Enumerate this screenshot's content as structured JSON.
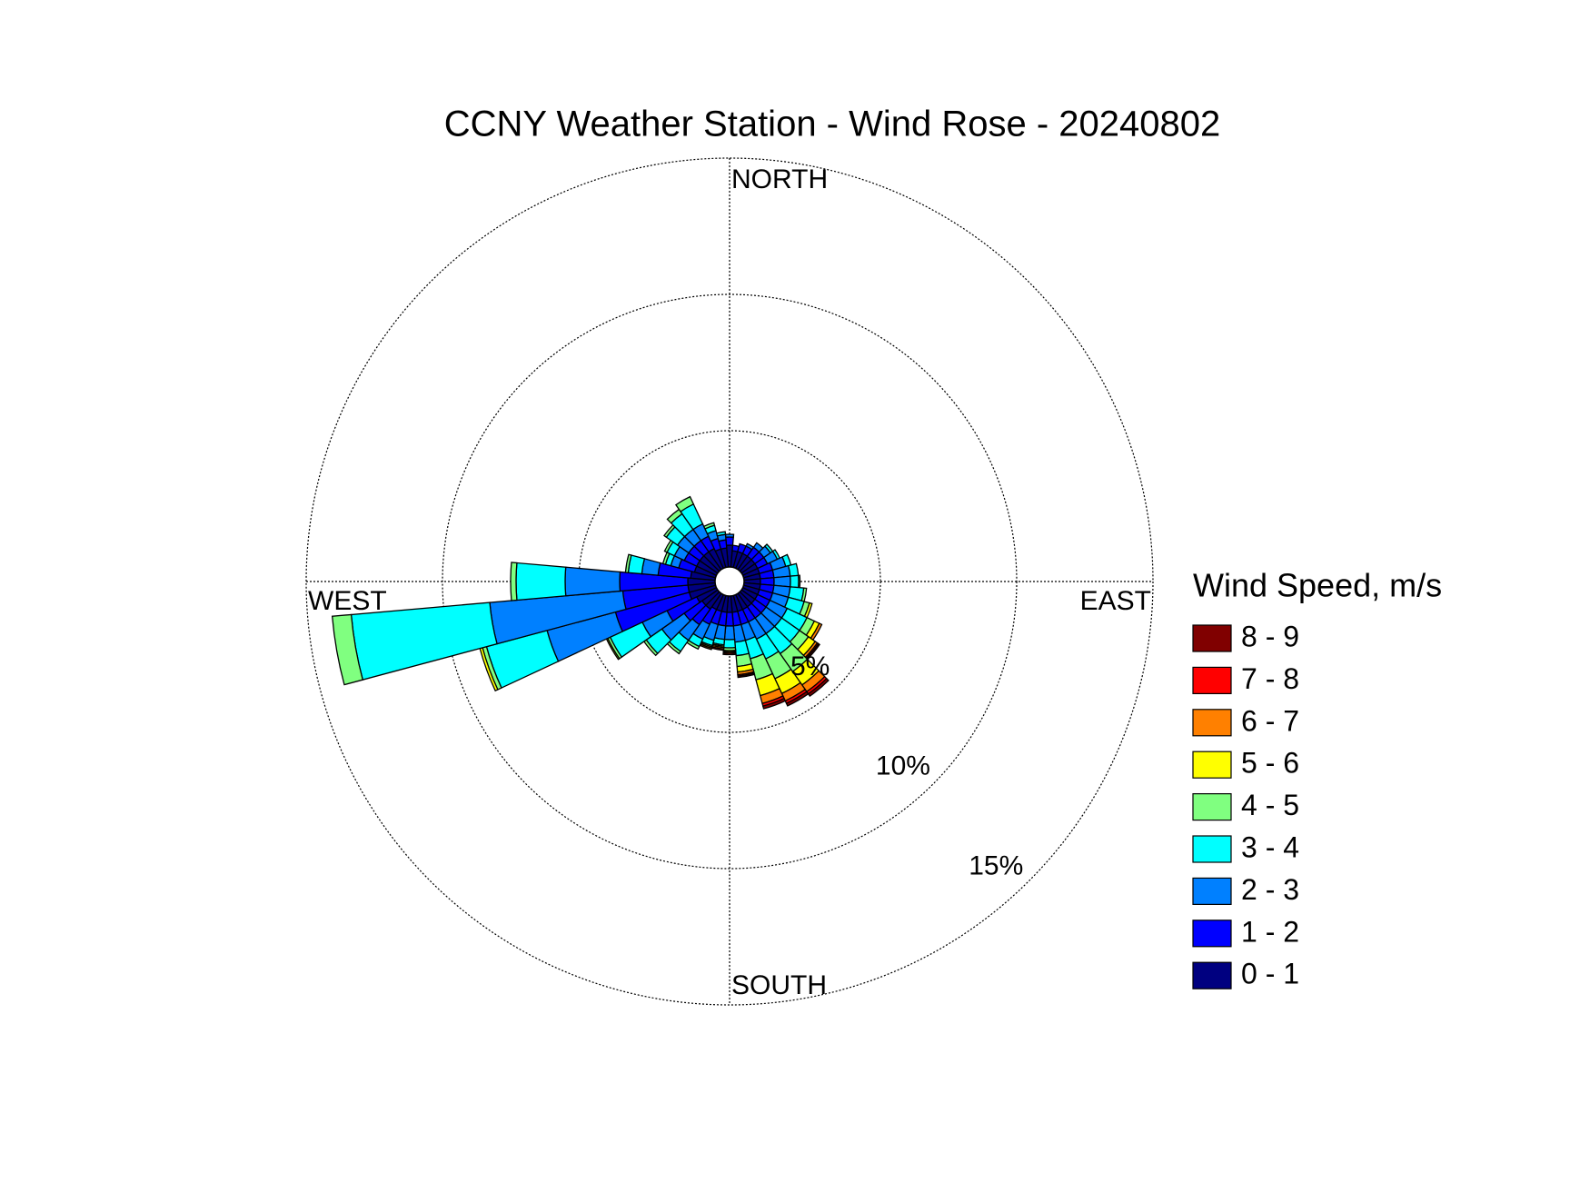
{
  "chart_data": {
    "type": "windrose",
    "title": "CCNY Weather Station - Wind Rose - 20240802",
    "direction_labels": [
      "NORTH",
      "EAST",
      "SOUTH",
      "WEST"
    ],
    "legend_title": "Wind Speed, m/s",
    "x": [
      0,
      10,
      20,
      30,
      40,
      50,
      60,
      70,
      80,
      90,
      100,
      110,
      120,
      130,
      140,
      150,
      160,
      170,
      180,
      190,
      200,
      210,
      220,
      230,
      240,
      250,
      260,
      270,
      280,
      290,
      300,
      310,
      320,
      330,
      340,
      350
    ],
    "rlim": [
      0,
      15
    ],
    "rticks": [
      {
        "value": 5,
        "label": "5%"
      },
      {
        "value": 10,
        "label": "10%"
      },
      {
        "value": 15,
        "label": "15%"
      }
    ],
    "grid": true,
    "series": [
      {
        "name": "0 - 1",
        "color": "#000080",
        "values": [
          0.8,
          0.6,
          0.6,
          0.6,
          0.6,
          0.6,
          0.6,
          0.6,
          0.6,
          0.6,
          0.6,
          0.6,
          0.6,
          0.6,
          0.6,
          0.6,
          0.6,
          0.6,
          0.6,
          0.6,
          0.6,
          0.6,
          0.7,
          0.7,
          0.8,
          1.0,
          1.0,
          1.0,
          0.9,
          0.8,
          0.8,
          0.8,
          0.8,
          0.8,
          0.7,
          0.7
        ]
      },
      {
        "name": "1 - 2",
        "color": "#0000ff",
        "values": [
          0.3,
          0.2,
          0.3,
          0.3,
          0.4,
          0.4,
          0.4,
          0.5,
          0.5,
          0.5,
          0.5,
          0.5,
          0.5,
          0.5,
          0.5,
          0.5,
          0.5,
          0.5,
          0.5,
          0.5,
          0.5,
          0.6,
          0.7,
          0.8,
          1.2,
          2.8,
          2.4,
          2.5,
          1.2,
          0.6,
          0.5,
          0.5,
          0.5,
          0.5,
          0.4,
          0.3
        ]
      },
      {
        "name": "2 - 3",
        "color": "#0080ff",
        "values": [
          0.1,
          0,
          0,
          0.1,
          0.2,
          0.3,
          0.4,
          0.5,
          0.6,
          0.6,
          0.6,
          0.6,
          0.7,
          0.7,
          0.7,
          0.7,
          0.6,
          0.6,
          0.5,
          0.5,
          0.6,
          0.6,
          0.7,
          1.0,
          1.0,
          2.6,
          4.9,
          2.0,
          0.6,
          0.3,
          0.4,
          0.5,
          0.5,
          0.5,
          0.3,
          0.2
        ]
      },
      {
        "name": "3 - 4",
        "color": "#00ffff",
        "values": [
          0,
          0,
          0,
          0,
          0,
          0.1,
          0.1,
          0.2,
          0.3,
          0.3,
          0.5,
          0.6,
          0.8,
          0.8,
          0.9,
          0.8,
          0.7,
          0.5,
          0.3,
          0.2,
          0.2,
          0.3,
          0.5,
          0.7,
          1.3,
          2.3,
          5.1,
          1.8,
          0.5,
          0.2,
          0.3,
          0.5,
          0.7,
          0.8,
          0.2,
          0.1
        ]
      },
      {
        "name": "4 - 5",
        "color": "#80ff80",
        "values": [
          0,
          0,
          0,
          0,
          0,
          0,
          0,
          0,
          0,
          0.05,
          0.1,
          0.2,
          0.3,
          0.4,
          0.8,
          0.8,
          0.8,
          0.4,
          0.1,
          0.05,
          0.05,
          0.1,
          0.1,
          0.1,
          0.1,
          0.15,
          0.7,
          0.2,
          0.1,
          0.1,
          0.1,
          0.1,
          0.2,
          0.3,
          0.1,
          0
        ]
      },
      {
        "name": "5 - 6",
        "color": "#ffff00",
        "values": [
          0,
          0,
          0,
          0,
          0,
          0,
          0,
          0,
          0,
          0,
          0,
          0.1,
          0.2,
          0.3,
          0.6,
          0.6,
          0.6,
          0.2,
          0.05,
          0.05,
          0.05,
          0,
          0,
          0,
          0.05,
          0.1,
          0,
          0,
          0,
          0,
          0,
          0,
          0,
          0,
          0,
          0
        ]
      },
      {
        "name": "6 - 7",
        "color": "#ff8000",
        "values": [
          0,
          0,
          0,
          0,
          0,
          0,
          0,
          0,
          0,
          0,
          0,
          0,
          0.1,
          0.1,
          0.3,
          0.3,
          0.3,
          0.1,
          0.05,
          0.05,
          0.05,
          0,
          0,
          0,
          0,
          0,
          0,
          0,
          0,
          0,
          0,
          0,
          0,
          0,
          0,
          0
        ]
      },
      {
        "name": "7 - 8",
        "color": "#ff0000",
        "values": [
          0,
          0,
          0,
          0,
          0,
          0,
          0,
          0,
          0,
          0,
          0,
          0,
          0,
          0.05,
          0.1,
          0.1,
          0.1,
          0.05,
          0.05,
          0.05,
          0,
          0,
          0,
          0,
          0,
          0,
          0,
          0,
          0,
          0,
          0,
          0,
          0,
          0,
          0,
          0
        ]
      },
      {
        "name": "8 - 9",
        "color": "#800000",
        "values": [
          0,
          0,
          0,
          0,
          0,
          0,
          0,
          0,
          0,
          0,
          0,
          0,
          0,
          0.05,
          0.1,
          0.1,
          0.1,
          0.05,
          0,
          0,
          0,
          0,
          0,
          0,
          0,
          0,
          0,
          0,
          0,
          0,
          0,
          0,
          0,
          0,
          0,
          0
        ]
      }
    ]
  }
}
